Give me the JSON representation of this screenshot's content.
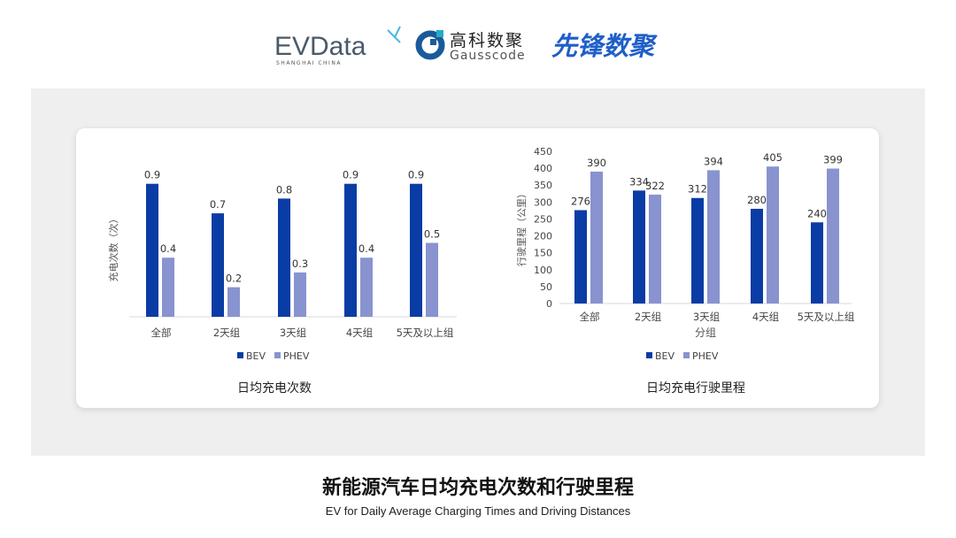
{
  "logos": {
    "evdata": "EVData",
    "evdata_sub": "SHANGHAI CHINA",
    "gauss_cn": "高科数聚",
    "gauss_en": "Gausscode",
    "xianfeng": "先锋数聚"
  },
  "colors": {
    "BEV": "#0a3ca5",
    "PHEV": "#8893cf",
    "panel": "#efefef"
  },
  "title": "新能源汽车日均充电次数和行驶里程",
  "subtitle": "EV for Daily Average Charging Times and Driving Distances",
  "chart_data": [
    {
      "type": "bar",
      "title": "日均充电次数",
      "ylabel": "充电次数（次）",
      "xlabel": "",
      "categories": [
        "全部",
        "2天组",
        "3天组",
        "4天组",
        "5天及以上组"
      ],
      "series": [
        {
          "name": "BEV",
          "values": [
            0.9,
            0.7,
            0.8,
            0.9,
            0.9
          ]
        },
        {
          "name": "PHEV",
          "values": [
            0.4,
            0.2,
            0.3,
            0.4,
            0.5
          ]
        }
      ],
      "ylim": [
        0,
        1.0
      ],
      "y_ticks_shown": false,
      "grid": false,
      "legend": "bottom"
    },
    {
      "type": "bar",
      "title": "日均充电行驶里程",
      "ylabel": "行驶里程（公里）",
      "xlabel": "分组",
      "categories": [
        "全部",
        "2天组",
        "3天组",
        "4天组",
        "5天及以上组"
      ],
      "series": [
        {
          "name": "BEV",
          "values": [
            276,
            334,
            312,
            280,
            240
          ]
        },
        {
          "name": "PHEV",
          "values": [
            390,
            322,
            394,
            405,
            399
          ]
        }
      ],
      "ylim": [
        0,
        450
      ],
      "yticks": [
        0,
        50,
        100,
        150,
        200,
        250,
        300,
        350,
        400,
        450
      ],
      "grid": false,
      "legend": "bottom"
    }
  ]
}
